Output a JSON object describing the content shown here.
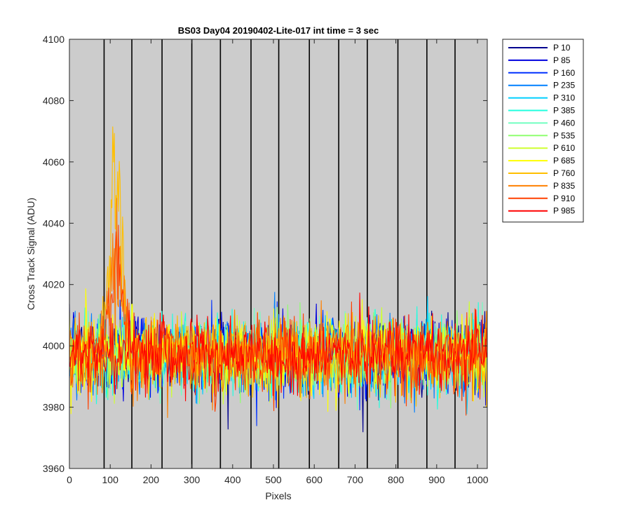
{
  "chart_data": {
    "type": "line",
    "title": "BS03 Day04 20190402-Lite-017 int time = 3 sec",
    "xlabel": "Pixels",
    "ylabel": "Cross Track Signal (ADU)",
    "xlim": [
      0,
      1024
    ],
    "ylim": [
      3960,
      4100
    ],
    "xticks": [
      0,
      100,
      200,
      300,
      400,
      500,
      600,
      700,
      800,
      900,
      1000
    ],
    "yticks": [
      3960,
      3980,
      4000,
      4020,
      4040,
      4060,
      4080,
      4100
    ],
    "plot_background": "#cccccc",
    "vertical_markers": [
      85,
      153,
      227,
      300,
      370,
      445,
      513,
      588,
      660,
      730,
      805,
      876,
      945
    ],
    "legend_position": "outside-right",
    "series": [
      {
        "name": "P 10",
        "color": "#00008f"
      },
      {
        "name": "P 85",
        "color": "#0000df"
      },
      {
        "name": "P 160",
        "color": "#0030ff"
      },
      {
        "name": "P 235",
        "color": "#0080ff"
      },
      {
        "name": "P 310",
        "color": "#00cfff"
      },
      {
        "name": "P 385",
        "color": "#20ffdf"
      },
      {
        "name": "P 460",
        "color": "#70ffc0"
      },
      {
        "name": "P 535",
        "color": "#8fff70"
      },
      {
        "name": "P 610",
        "color": "#cfff30"
      },
      {
        "name": "P 685",
        "color": "#ffff00"
      },
      {
        "name": "P 760",
        "color": "#ffbf00"
      },
      {
        "name": "P 835",
        "color": "#ff8000"
      },
      {
        "name": "P 910",
        "color": "#ff4000"
      },
      {
        "name": "P 985",
        "color": "#ff0000"
      }
    ],
    "trace_model": {
      "points_per_series": 512,
      "baseline": 3997,
      "noise_sd": 6,
      "bumps": [
        {
          "series": "P 760",
          "x_range": [
            80,
            150
          ],
          "peak": 4083
        },
        {
          "series": "P 835",
          "x_range": [
            80,
            150
          ],
          "peak": 4050
        },
        {
          "series": "P 910",
          "x_range": [
            80,
            150
          ],
          "peak": 4040
        }
      ]
    }
  }
}
